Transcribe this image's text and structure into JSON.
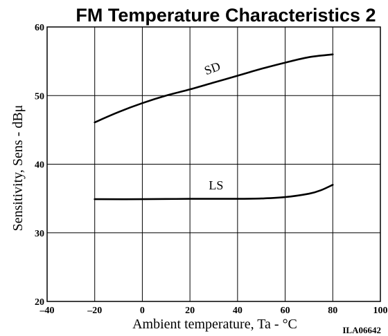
{
  "chart_data": {
    "type": "line",
    "title": "FM Temperature Characteristics 2",
    "xlabel": "Ambient temperature, Ta - °C",
    "ylabel": "Sensitivity, Sens - dBμ",
    "xlim": [
      -40,
      100
    ],
    "ylim": [
      20,
      60
    ],
    "x_ticks": [
      "–40",
      "–20",
      "0",
      "20",
      "40",
      "60",
      "80",
      "100"
    ],
    "y_ticks": [
      "20",
      "30",
      "40",
      "50",
      "60"
    ],
    "grid": true,
    "code": "ILA06642",
    "series": [
      {
        "name": "SD",
        "points": [
          [
            -20,
            46.1
          ],
          [
            -10,
            47.6
          ],
          [
            0,
            48.9
          ],
          [
            10,
            50.0
          ],
          [
            20,
            50.9
          ],
          [
            30,
            51.9
          ],
          [
            40,
            52.9
          ],
          [
            50,
            53.9
          ],
          [
            60,
            54.8
          ],
          [
            70,
            55.6
          ],
          [
            80,
            56.0
          ]
        ]
      },
      {
        "name": "LS",
        "points": [
          [
            -20,
            34.9
          ],
          [
            0,
            34.9
          ],
          [
            20,
            34.95
          ],
          [
            40,
            34.95
          ],
          [
            50,
            35.0
          ],
          [
            60,
            35.2
          ],
          [
            70,
            35.7
          ],
          [
            75,
            36.2
          ],
          [
            80,
            37.0
          ]
        ]
      }
    ]
  }
}
